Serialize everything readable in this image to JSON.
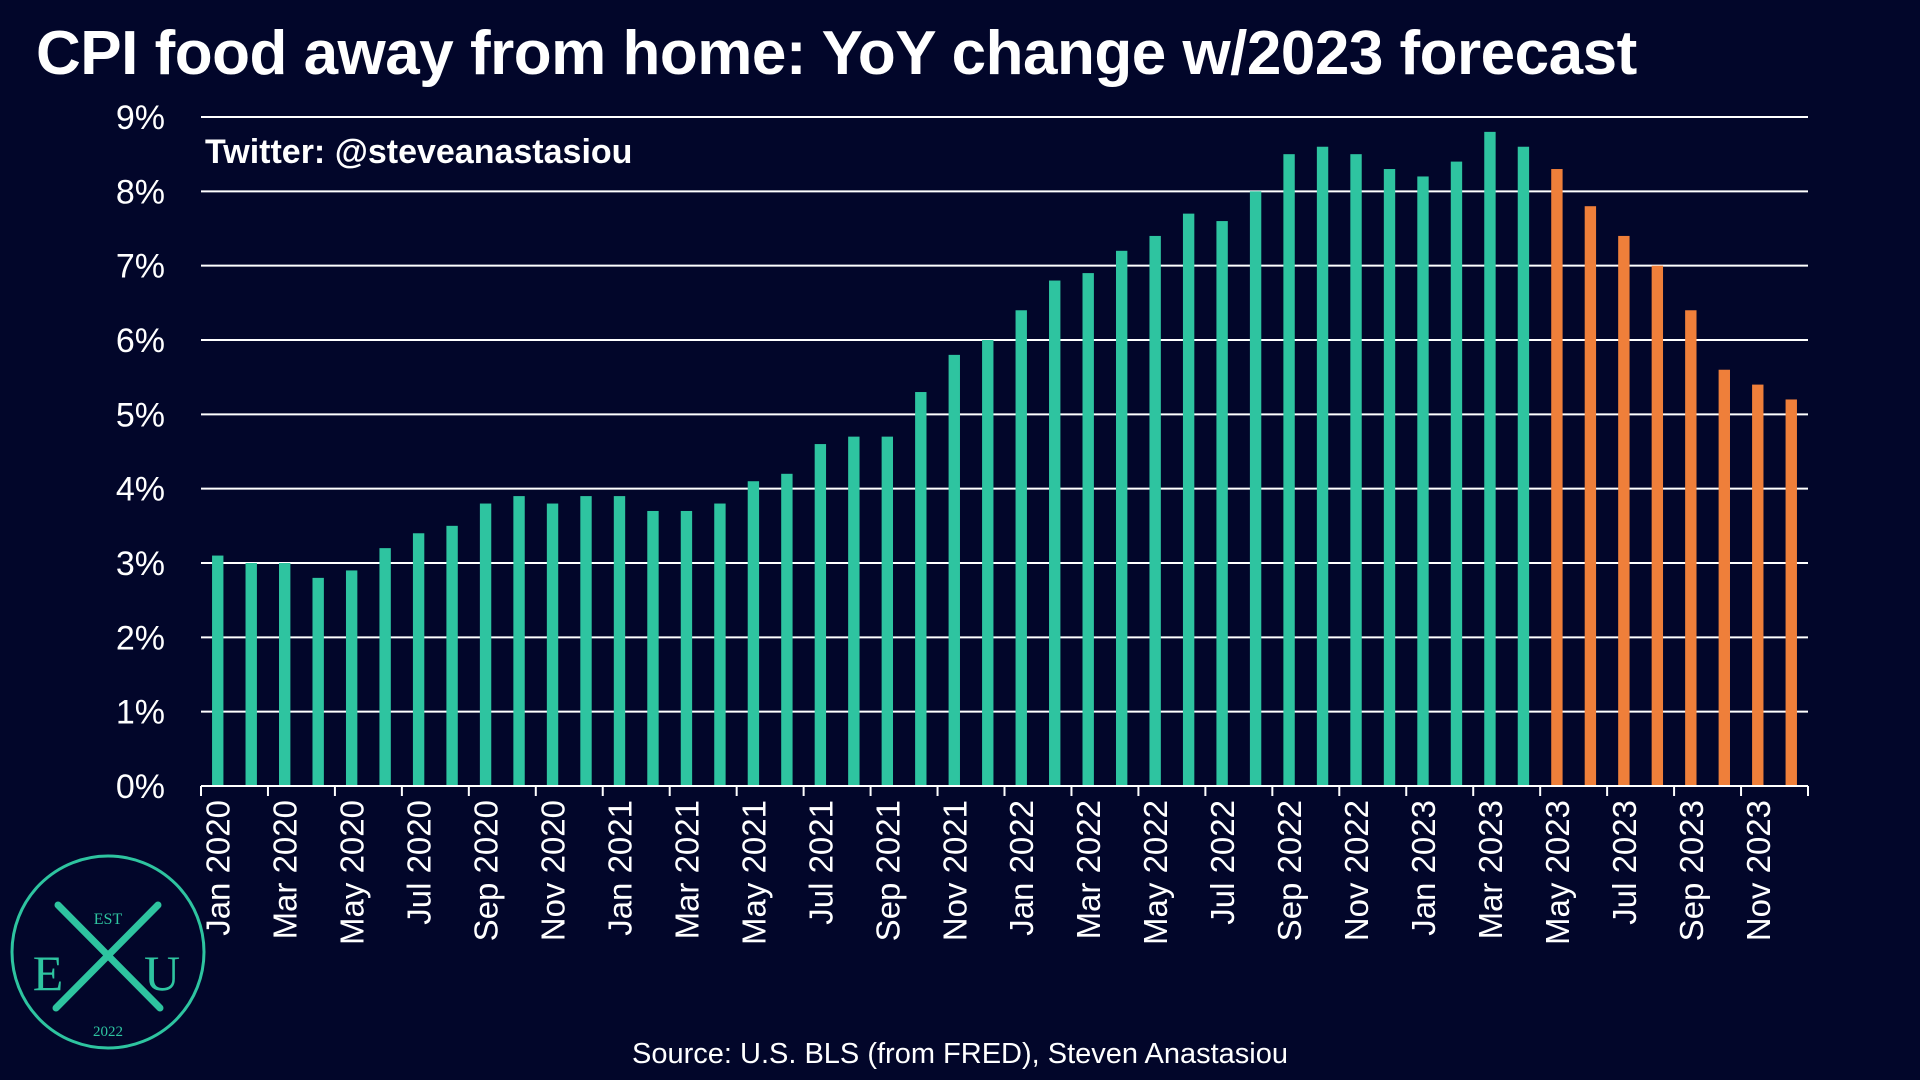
{
  "title": "CPI food away from home: YoY change w/2023 forecast",
  "watermark": "Twitter: @steveanastasiou",
  "source": "Source: U.S. BLS (from FRED), Steven Anastasiou",
  "logo": {
    "top_text": "EST",
    "left_letter": "E",
    "right_letter": "U",
    "bottom_text": "2022",
    "color": "#2ec4a0"
  },
  "colors": {
    "background": "#02062a",
    "actual": "#2ec4a0",
    "forecast": "#ef7f3a",
    "grid": "#ffffff",
    "text": "#ffffff"
  },
  "chart_data": {
    "type": "bar",
    "title": "CPI food away from home: YoY change w/2023 forecast",
    "xlabel": "",
    "ylabel": "",
    "ylim": [
      0,
      9
    ],
    "yticks": [
      "0%",
      "1%",
      "2%",
      "3%",
      "4%",
      "5%",
      "6%",
      "7%",
      "8%",
      "9%"
    ],
    "grid": "horizontal",
    "categories": [
      "Jan 2020",
      "Feb 2020",
      "Mar 2020",
      "Apr 2020",
      "May 2020",
      "Jun 2020",
      "Jul 2020",
      "Aug 2020",
      "Sep 2020",
      "Oct 2020",
      "Nov 2020",
      "Dec 2020",
      "Jan 2021",
      "Feb 2021",
      "Mar 2021",
      "Apr 2021",
      "May 2021",
      "Jun 2021",
      "Jul 2021",
      "Aug 2021",
      "Sep 2021",
      "Oct 2021",
      "Nov 2021",
      "Dec 2021",
      "Jan 2022",
      "Feb 2022",
      "Mar 2022",
      "Apr 2022",
      "May 2022",
      "Jun 2022",
      "Jul 2022",
      "Aug 2022",
      "Sep 2022",
      "Oct 2022",
      "Nov 2022",
      "Dec 2022",
      "Jan 2023",
      "Feb 2023",
      "Mar 2023",
      "Apr 2023",
      "May 2023",
      "Jun 2023",
      "Jul 2023",
      "Aug 2023",
      "Sep 2023",
      "Oct 2023",
      "Nov 2023",
      "Dec 2023"
    ],
    "tick_labels": [
      "Jan 2020",
      "Mar 2020",
      "May 2020",
      "Jul 2020",
      "Sep 2020",
      "Nov 2020",
      "Jan 2021",
      "Mar 2021",
      "May 2021",
      "Jul 2021",
      "Sep 2021",
      "Nov 2021",
      "Jan 2022",
      "Mar 2022",
      "May 2022",
      "Jul 2022",
      "Sep 2022",
      "Nov 2022",
      "Jan 2023",
      "Mar 2023",
      "May 2023",
      "Jul 2023",
      "Sep 2023",
      "Nov 2023"
    ],
    "series": [
      {
        "values": [
          3.1,
          3.0,
          3.0,
          2.8,
          2.9,
          3.2,
          3.4,
          3.5,
          3.8,
          3.9,
          3.8,
          3.9,
          3.9,
          3.7,
          3.7,
          3.8,
          4.1,
          4.2,
          4.6,
          4.7,
          4.7,
          5.3,
          5.8,
          6.0,
          6.4,
          6.8,
          6.9,
          7.2,
          7.4,
          7.7,
          7.6,
          8.0,
          8.5,
          8.6,
          8.5,
          8.3,
          8.2,
          8.4,
          8.8,
          8.6,
          null,
          null,
          null,
          null,
          null,
          null,
          null,
          null
        ]
      },
      {
        "values": [
          null,
          null,
          null,
          null,
          null,
          null,
          null,
          null,
          null,
          null,
          null,
          null,
          null,
          null,
          null,
          null,
          null,
          null,
          null,
          null,
          null,
          null,
          null,
          null,
          null,
          null,
          null,
          null,
          null,
          null,
          null,
          null,
          null,
          null,
          null,
          null,
          null,
          null,
          null,
          null,
          8.3,
          7.8,
          7.4,
          7.0,
          6.4,
          5.6,
          5.4,
          5.2
        ]
      }
    ]
  }
}
